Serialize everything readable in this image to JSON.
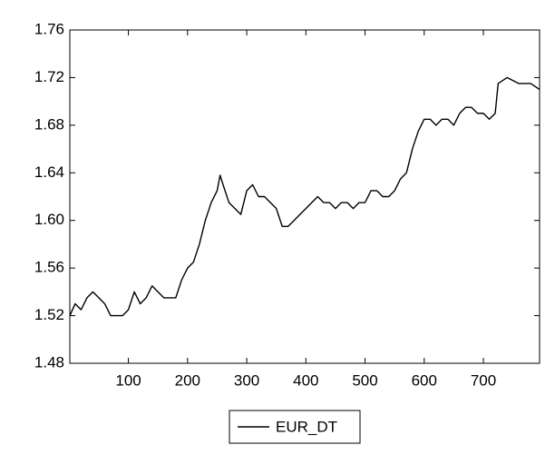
{
  "chart_data": {
    "type": "line",
    "x": [
      1,
      10,
      20,
      30,
      40,
      50,
      60,
      70,
      80,
      90,
      100,
      110,
      120,
      130,
      140,
      150,
      160,
      170,
      180,
      190,
      200,
      210,
      220,
      230,
      240,
      250,
      255,
      260,
      270,
      280,
      290,
      300,
      310,
      320,
      330,
      340,
      350,
      360,
      370,
      380,
      390,
      400,
      410,
      420,
      430,
      440,
      450,
      460,
      470,
      480,
      490,
      500,
      510,
      520,
      530,
      540,
      550,
      560,
      570,
      580,
      590,
      600,
      610,
      620,
      630,
      640,
      650,
      660,
      670,
      680,
      690,
      700,
      710,
      720,
      725,
      740,
      760,
      780,
      795
    ],
    "series": [
      {
        "name": "EUR_DT",
        "color": "#000000",
        "values": [
          1.52,
          1.53,
          1.525,
          1.535,
          1.54,
          1.535,
          1.53,
          1.52,
          1.52,
          1.52,
          1.525,
          1.54,
          1.53,
          1.535,
          1.545,
          1.54,
          1.535,
          1.535,
          1.535,
          1.55,
          1.56,
          1.565,
          1.58,
          1.6,
          1.615,
          1.625,
          1.638,
          1.63,
          1.615,
          1.61,
          1.605,
          1.625,
          1.63,
          1.62,
          1.62,
          1.615,
          1.61,
          1.595,
          1.595,
          1.6,
          1.605,
          1.61,
          1.615,
          1.62,
          1.615,
          1.615,
          1.61,
          1.615,
          1.615,
          1.61,
          1.615,
          1.615,
          1.625,
          1.625,
          1.62,
          1.62,
          1.625,
          1.635,
          1.64,
          1.66,
          1.675,
          1.685,
          1.685,
          1.68,
          1.685,
          1.685,
          1.68,
          1.69,
          1.695,
          1.695,
          1.69,
          1.69,
          1.685,
          1.69,
          1.715,
          1.72,
          1.715,
          1.715,
          1.71
        ]
      }
    ],
    "xlim": [
      1,
      795
    ],
    "xticks": [
      100,
      200,
      300,
      400,
      500,
      600,
      700
    ],
    "ylim": [
      1.48,
      1.76
    ],
    "yticks": [
      1.48,
      1.52,
      1.56,
      {
        "value": 1.6,
        "label": "1.60"
      },
      1.64,
      1.68,
      1.72,
      1.76
    ]
  }
}
